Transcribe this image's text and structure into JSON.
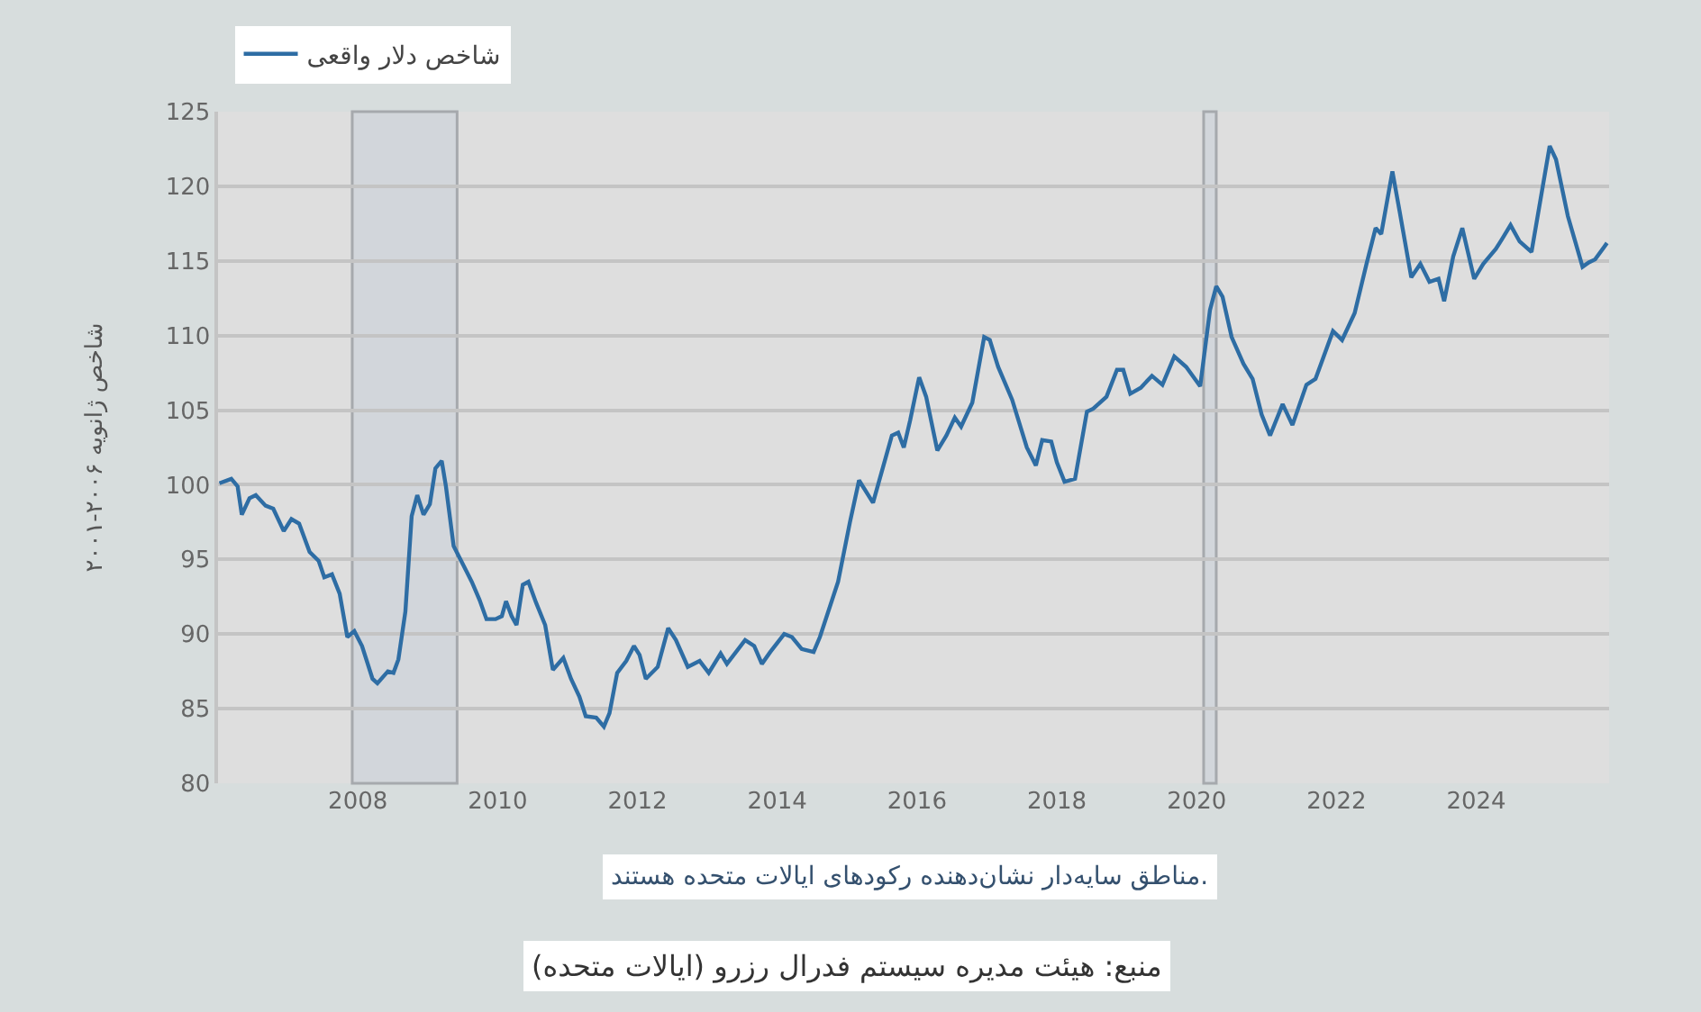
{
  "chart_data": {
    "type": "line",
    "ylabel": "شاخص ژانویه ۲۰۰۶-۲۰۰۱",
    "annotations": [
      "مناطق سایه‌دار نشان‌دهنده رکودهای ایالات متحده هستند.",
      "منبع: هیئت مدیره سیستم فدرال رزرو (ایالات متحده)"
    ],
    "x": [
      2006.02,
      2006.19,
      2006.28,
      2006.34,
      2006.45,
      2006.54,
      2006.68,
      2006.79,
      2006.94,
      2007.05,
      2007.16,
      2007.31,
      2007.44,
      2007.52,
      2007.63,
      2007.74,
      2007.85,
      2007.95,
      2008.06,
      2008.21,
      2008.28,
      2008.43,
      2008.51,
      2008.58,
      2008.68,
      2008.77,
      2008.85,
      2008.94,
      2009.03,
      2009.11,
      2009.2,
      2009.26,
      2009.37,
      2009.5,
      2009.63,
      2009.74,
      2009.84,
      2009.97,
      2010.06,
      2010.12,
      2010.2,
      2010.27,
      2010.36,
      2010.44,
      2010.55,
      2010.68,
      2010.79,
      2010.94,
      2011.05,
      2011.17,
      2011.26,
      2011.41,
      2011.52,
      2011.6,
      2011.71,
      2011.84,
      2011.95,
      2012.03,
      2012.12,
      2012.29,
      2012.44,
      2012.55,
      2012.72,
      2012.89,
      2013.02,
      2013.19,
      2013.28,
      2013.54,
      2013.67,
      2013.78,
      2013.9,
      2014.1,
      2014.21,
      2014.35,
      2014.52,
      2014.61,
      2014.87,
      2015.04,
      2015.17,
      2015.37,
      2015.64,
      2015.73,
      2015.81,
      2015.9,
      2016.03,
      2016.13,
      2016.29,
      2016.42,
      2016.54,
      2016.63,
      2016.79,
      2016.96,
      2017.04,
      2017.16,
      2017.36,
      2017.57,
      2017.7,
      2017.79,
      2017.92,
      2018.0,
      2018.11,
      2018.26,
      2018.43,
      2018.52,
      2018.71,
      2018.86,
      2018.95,
      2019.05,
      2019.2,
      2019.36,
      2019.51,
      2019.68,
      2019.85,
      2020.05,
      2020.19,
      2020.28,
      2020.37,
      2020.5,
      2020.67,
      2020.8,
      2020.93,
      2021.05,
      2021.23,
      2021.37,
      2021.57,
      2021.7,
      2021.95,
      2022.08,
      2022.26,
      2022.43,
      2022.56,
      2022.64,
      2022.8,
      2022.9,
      2023.07,
      2023.2,
      2023.33,
      2023.46,
      2023.54,
      2023.67,
      2023.8,
      2023.97,
      2024.1,
      2024.28,
      2024.36,
      2024.49,
      2024.62,
      2024.79,
      2025.05,
      2025.14,
      2025.31,
      2025.52,
      2025.61,
      2025.7,
      2025.87
    ],
    "series": [
      {
        "name": "شاخص دلار واقعی",
        "color": "#2e6da4",
        "values": [
          100.1,
          100.4,
          99.9,
          98.0,
          99.1,
          99.3,
          98.6,
          98.4,
          96.9,
          97.7,
          97.4,
          95.5,
          94.9,
          93.8,
          94.0,
          92.7,
          89.8,
          90.2,
          89.2,
          87.0,
          86.7,
          87.5,
          87.4,
          88.3,
          91.5,
          97.9,
          99.3,
          98.0,
          98.7,
          101.1,
          101.6,
          99.9,
          95.9,
          94.7,
          93.5,
          92.3,
          91.0,
          91.0,
          91.2,
          92.2,
          91.2,
          90.6,
          93.3,
          93.5,
          92.1,
          90.6,
          87.6,
          88.4,
          87.0,
          85.8,
          84.5,
          84.4,
          83.8,
          84.7,
          87.4,
          88.2,
          89.2,
          88.6,
          87.0,
          87.8,
          90.4,
          89.6,
          87.8,
          88.2,
          87.4,
          88.7,
          88.0,
          89.6,
          89.2,
          88.0,
          88.8,
          90.0,
          89.8,
          89.0,
          88.8,
          89.8,
          93.5,
          97.5,
          100.3,
          98.8,
          103.3,
          103.5,
          102.5,
          104.3,
          107.2,
          105.9,
          102.3,
          103.3,
          104.5,
          103.9,
          105.5,
          109.9,
          109.7,
          107.9,
          105.7,
          102.5,
          101.3,
          103.0,
          102.9,
          101.5,
          100.2,
          100.4,
          104.9,
          105.1,
          105.9,
          107.7,
          107.7,
          106.1,
          106.5,
          107.3,
          106.7,
          108.6,
          107.9,
          106.6,
          111.7,
          113.3,
          112.6,
          109.9,
          108.1,
          107.1,
          104.7,
          103.3,
          105.4,
          104.0,
          106.7,
          107.1,
          110.3,
          109.7,
          111.5,
          114.8,
          117.2,
          116.8,
          121.0,
          118.4,
          113.9,
          114.8,
          113.6,
          113.8,
          112.3,
          115.3,
          117.2,
          113.8,
          114.8,
          115.8,
          116.4,
          117.4,
          116.3,
          115.6,
          122.7,
          121.8,
          118.0,
          114.6,
          114.9,
          115.1,
          116.2
        ]
      }
    ],
    "xlim": [
      2006.0,
      2025.9
    ],
    "xticks": [
      2008,
      2010,
      2012,
      2014,
      2016,
      2018,
      2020,
      2022,
      2024
    ],
    "ylim": [
      80,
      125
    ],
    "yticks": [
      80,
      85,
      90,
      95,
      100,
      105,
      110,
      115,
      120,
      125
    ],
    "bands": [
      {
        "axis": "x",
        "from": 2007.92,
        "to": 2009.42,
        "color": "#d2d6db"
      },
      {
        "axis": "x",
        "from": 2020.1,
        "to": 2020.28,
        "color": "#d2d6db"
      }
    ],
    "grid": "y",
    "legend": "top left",
    "line_style": "solid"
  }
}
